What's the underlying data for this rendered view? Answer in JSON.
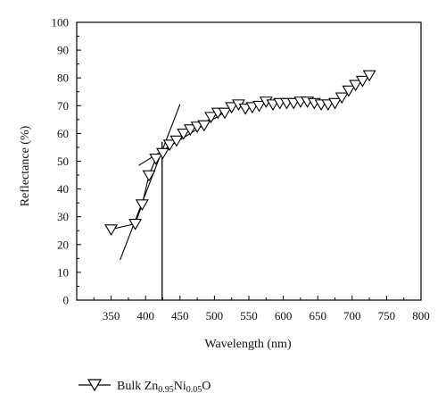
{
  "chart_data": {
    "type": "scatter",
    "xlabel": "Wavelength (nm)",
    "ylabel": "Reflectance (%)",
    "xlim": [
      300,
      800
    ],
    "ylim": [
      0,
      100
    ],
    "x_ticks": [
      350,
      400,
      450,
      500,
      550,
      600,
      650,
      700,
      750,
      800
    ],
    "y_ticks": [
      0,
      10,
      20,
      30,
      40,
      50,
      60,
      70,
      80,
      90,
      100
    ],
    "grid": false,
    "legend_position": "bottom-left",
    "series": [
      {
        "name": "Bulk Zn0.95Ni0.05O",
        "marker": "down-triangle",
        "color": "#000000",
        "points": [
          {
            "x": 350,
            "y": 25.5
          },
          {
            "x": 385,
            "y": 27.5
          },
          {
            "x": 395,
            "y": 34.5
          },
          {
            "x": 405,
            "y": 45
          },
          {
            "x": 415,
            "y": 51
          },
          {
            "x": 425,
            "y": 53
          },
          {
            "x": 435,
            "y": 56
          },
          {
            "x": 445,
            "y": 57.5
          },
          {
            "x": 455,
            "y": 60
          },
          {
            "x": 465,
            "y": 61.5
          },
          {
            "x": 475,
            "y": 62.5
          },
          {
            "x": 485,
            "y": 63
          },
          {
            "x": 495,
            "y": 66
          },
          {
            "x": 505,
            "y": 67.5
          },
          {
            "x": 515,
            "y": 67.5
          },
          {
            "x": 525,
            "y": 69.5
          },
          {
            "x": 535,
            "y": 70.5
          },
          {
            "x": 545,
            "y": 69
          },
          {
            "x": 555,
            "y": 69.5
          },
          {
            "x": 565,
            "y": 70
          },
          {
            "x": 575,
            "y": 71.5
          },
          {
            "x": 585,
            "y": 70.5
          },
          {
            "x": 595,
            "y": 71
          },
          {
            "x": 605,
            "y": 71
          },
          {
            "x": 615,
            "y": 71
          },
          {
            "x": 625,
            "y": 71.5
          },
          {
            "x": 635,
            "y": 71.5
          },
          {
            "x": 645,
            "y": 71
          },
          {
            "x": 655,
            "y": 70.5
          },
          {
            "x": 665,
            "y": 70.5
          },
          {
            "x": 675,
            "y": 71
          },
          {
            "x": 685,
            "y": 73
          },
          {
            "x": 695,
            "y": 75.5
          },
          {
            "x": 705,
            "y": 77.5
          },
          {
            "x": 715,
            "y": 79
          },
          {
            "x": 725,
            "y": 81
          }
        ]
      }
    ],
    "annotations": [
      {
        "type": "tangent-line",
        "x1": 363,
        "y1": 14.5,
        "x2": 450,
        "y2": 70.5
      },
      {
        "type": "tangent-line",
        "x1": 390,
        "y1": 48.5,
        "x2": 540,
        "y2": 71.5
      },
      {
        "type": "vertical-line",
        "x": 424,
        "y1": 0,
        "y2": 57
      }
    ]
  },
  "legend": {
    "label_prefix": "Bulk Zn",
    "sub1": "0.95",
    "label_mid": "Ni",
    "sub2": "0.05",
    "label_suffix": "O"
  }
}
